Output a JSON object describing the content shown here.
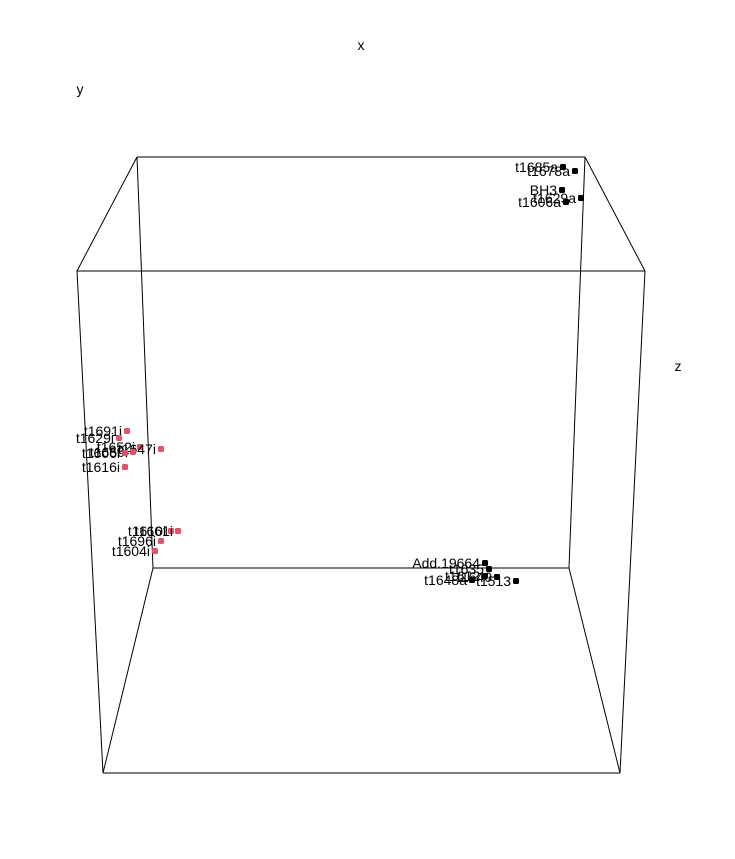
{
  "chart_data": {
    "type": "scatter",
    "projection": "3d",
    "title": "",
    "axis_labels": {
      "x": "x",
      "y": "y",
      "z": "z"
    },
    "grid": false,
    "series": [
      {
        "color": "#000000",
        "points": [
          {
            "label": "t1685a"
          },
          {
            "label": "t1678a"
          },
          {
            "label": "BH3"
          },
          {
            "label": "t1629a"
          },
          {
            "label": "t1606a"
          },
          {
            "label": "Add.19664"
          },
          {
            "label": "t1635"
          },
          {
            "label": "t1612"
          },
          {
            "label": "t1640"
          },
          {
            "label": "t1513"
          },
          {
            "label": "t1648a"
          }
        ]
      },
      {
        "color": "#df536b",
        "points": [
          {
            "label": "t1691i"
          },
          {
            "label": "t1629i"
          },
          {
            "label": "t1652i"
          },
          {
            "label": "t1647i"
          },
          {
            "label": "t1650i"
          },
          {
            "label": "t1606i"
          },
          {
            "label": "t1616i"
          },
          {
            "label": "t1610i"
          },
          {
            "label": "t1661i"
          },
          {
            "label": "t1696i"
          },
          {
            "label": "t1604i"
          }
        ]
      }
    ]
  }
}
